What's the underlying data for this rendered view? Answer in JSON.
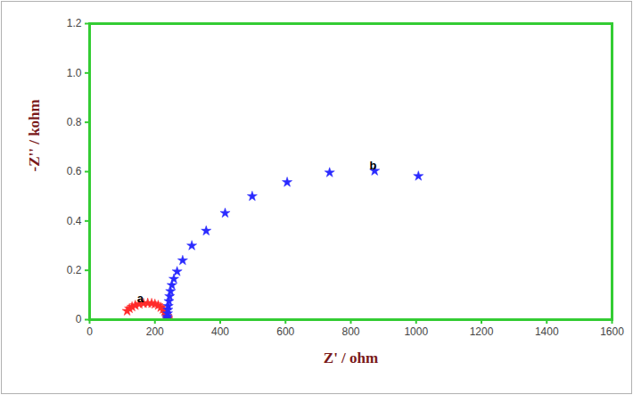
{
  "chart_data": {
    "type": "scatter",
    "xlabel": "Z' / ohm",
    "ylabel": "-Z'' / kohm",
    "xlim": [
      0,
      1600
    ],
    "xticks": [
      0,
      200,
      400,
      600,
      800,
      1000,
      1200,
      1400,
      1600
    ],
    "ylim": [
      0,
      1.2
    ],
    "yticks": [
      0,
      0.2,
      0.4,
      0.6,
      0.8,
      {
        "value": 1,
        "label": "1.0"
      },
      1.2
    ],
    "grid": false,
    "marker": "star",
    "series": [
      {
        "name": "a",
        "color": "#ff2a2a",
        "x": [
          115,
          122,
          130,
          140,
          152,
          165,
          178,
          190,
          200,
          210,
          218,
          225,
          230,
          234,
          237,
          239,
          240
        ],
        "values": [
          0.035,
          0.045,
          0.052,
          0.058,
          0.063,
          0.066,
          0.067,
          0.066,
          0.063,
          0.058,
          0.05,
          0.042,
          0.033,
          0.024,
          0.015,
          0.008,
          0.003
        ]
      },
      {
        "name": "b",
        "color": "#2a2aff",
        "x": [
          1007,
          873,
          735,
          605,
          498,
          415,
          357,
          313,
          285,
          268,
          258,
          252,
          248,
          245,
          243,
          241,
          240,
          239,
          238,
          237
        ],
        "values": [
          0.582,
          0.603,
          0.596,
          0.557,
          0.5,
          0.432,
          0.36,
          0.3,
          0.24,
          0.195,
          0.165,
          0.14,
          0.115,
          0.095,
          0.075,
          0.055,
          0.04,
          0.025,
          0.012,
          0.005
        ]
      }
    ],
    "annotations": [
      {
        "text": "a",
        "x": 155,
        "y": 0.085
      },
      {
        "text": "b",
        "x": 868,
        "y": 0.625
      }
    ]
  }
}
